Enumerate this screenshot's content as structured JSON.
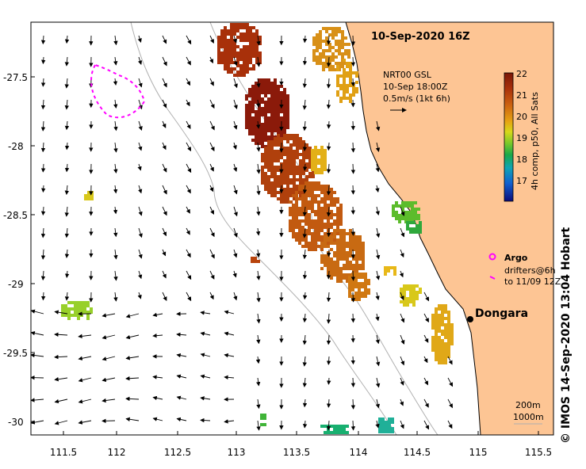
{
  "map": {
    "date_title": "10-Sep-2020 16Z",
    "lat_labels": [
      "-27.5",
      "-28",
      "-28.5",
      "-29",
      "-29.5",
      "-30"
    ],
    "lon_labels": [
      "111.5",
      "112",
      "112.5",
      "113",
      "113.5",
      "114",
      "114.5",
      "115",
      "115.5"
    ],
    "current_legend": {
      "line1": "NRT00 GSL",
      "line2": "10-Sep 18:00Z",
      "line3": "0.5m/s (1kt 6h)"
    },
    "colorbar": {
      "label": "4h comp, p50, All Sats",
      "ticks": [
        "22",
        "21",
        "20",
        "19",
        "18",
        "17"
      ],
      "colors": [
        "#8b1a0a",
        "#b8430c",
        "#d57a10",
        "#e8b410",
        "#d8d818",
        "#86cc26",
        "#20b040",
        "#10a0b0",
        "#1060d0",
        "#101080"
      ]
    },
    "argo": {
      "label": "Argo",
      "drifters_line1": "drifters@6h",
      "drifters_line2": "to 11/09 12Z"
    },
    "place": "Dongara",
    "bathymetry": {
      "line1": "200m",
      "line2": "1000m"
    },
    "credit": "© IMOS 14-Sep-2020 13:04 Hobart",
    "colors": {
      "land": "#fdc594",
      "coastline": "#000000",
      "isobath": "#b0b0b0",
      "argo_track": "#ff00ff"
    }
  }
}
